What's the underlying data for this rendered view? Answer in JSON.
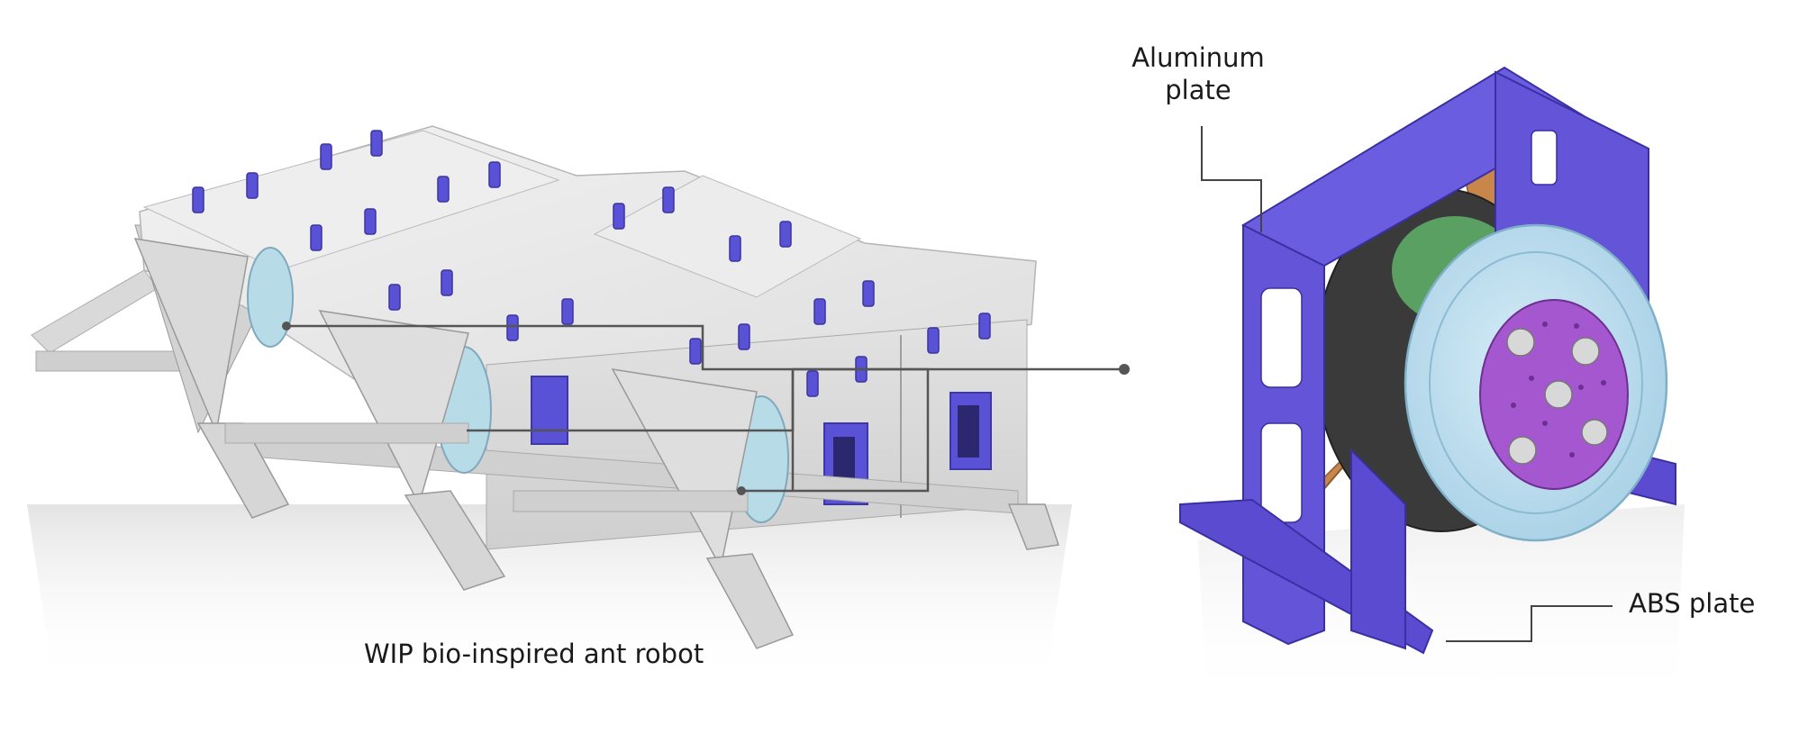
{
  "labels": {
    "aluminum": "Aluminum plate",
    "abs": "ABS plate",
    "caption": "WIP bio-inspired ant robot"
  },
  "colors": {
    "background": "#ffffff",
    "robot_body": "#e7e7e7",
    "robot_shadow": "#c9c9c9",
    "servo_blue": "#5a52d6",
    "frame_purple": "#6354d8",
    "aluminum_orange": "#c8864a",
    "motor_ring": "#b9dcef",
    "motor_hub": "#a557cf",
    "callout_line": "#555555"
  }
}
